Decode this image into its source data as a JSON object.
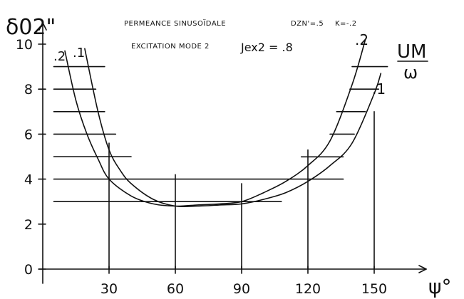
{
  "chart_data": {
    "type": "line",
    "title_line1": {
      "left": "PERMEANCE SINUSOÏDALE",
      "right_a": "DZN'=.5",
      "right_b": "K=-.2"
    },
    "title_line2": {
      "left": "EXCITATION MODE 2",
      "right": "Jex2 = .8"
    },
    "ylabel": "δ02\"",
    "xlabel": "ψ°",
    "y_ratio_label": {
      "num": "UM",
      "den": "ω"
    },
    "xlim": [
      0,
      160
    ],
    "ylim": [
      0,
      11
    ],
    "x_ticks": [
      30,
      60,
      90,
      120,
      150
    ],
    "y_ticks": [
      0,
      2,
      4,
      6,
      8,
      10
    ],
    "series": [
      {
        "name": ".2",
        "x": [
          10,
          15,
          20,
          25,
          30,
          40,
          50,
          60,
          70,
          80,
          90,
          100,
          110,
          120,
          130,
          140,
          146
        ],
        "y": [
          9.7,
          7.5,
          6.0,
          4.9,
          4.0,
          3.25,
          2.9,
          2.8,
          2.85,
          2.9,
          3.0,
          3.4,
          3.9,
          4.6,
          5.7,
          8.2,
          10.2
        ]
      },
      {
        "name": ".1",
        "x": [
          19,
          25,
          30,
          35,
          40,
          50,
          60,
          70,
          80,
          90,
          100,
          110,
          120,
          130,
          140,
          150,
          153
        ],
        "y": [
          9.8,
          7.0,
          5.3,
          4.4,
          3.8,
          3.1,
          2.8,
          2.8,
          2.85,
          2.9,
          3.1,
          3.4,
          3.9,
          4.6,
          5.6,
          7.8,
          8.7
        ]
      }
    ],
    "horizontal_levels": [
      {
        "y": 9.0,
        "x": [
          5,
          28
        ]
      },
      {
        "y": 8.0,
        "x": [
          5,
          24
        ]
      },
      {
        "y": 7.0,
        "x": [
          5,
          28
        ]
      },
      {
        "y": 6.0,
        "x": [
          5,
          33
        ]
      },
      {
        "y": 5.0,
        "x": [
          5,
          40
        ]
      },
      {
        "y": 4.0,
        "x": [
          5,
          136
        ]
      },
      {
        "y": 3.0,
        "x": [
          5,
          108
        ]
      },
      {
        "y": 4.99,
        "x": [
          117,
          136
        ]
      },
      {
        "y": 6.0,
        "x": [
          130,
          141
        ]
      },
      {
        "y": 7.0,
        "x": [
          133,
          146
        ]
      },
      {
        "y": 8.0,
        "x": [
          139,
          152
        ]
      },
      {
        "y": 9.0,
        "x": [
          140,
          156
        ]
      }
    ],
    "vertical_levels": [
      {
        "x": 30,
        "y": [
          0,
          5.6
        ]
      },
      {
        "x": 60,
        "y": [
          0,
          4.2
        ]
      },
      {
        "x": 90,
        "y": [
          0,
          3.8
        ]
      },
      {
        "x": 120,
        "y": [
          0,
          5.3
        ]
      },
      {
        "x": 150,
        "y": [
          0,
          7.0
        ]
      }
    ],
    "grid": false,
    "legend": "inline curve labels"
  }
}
